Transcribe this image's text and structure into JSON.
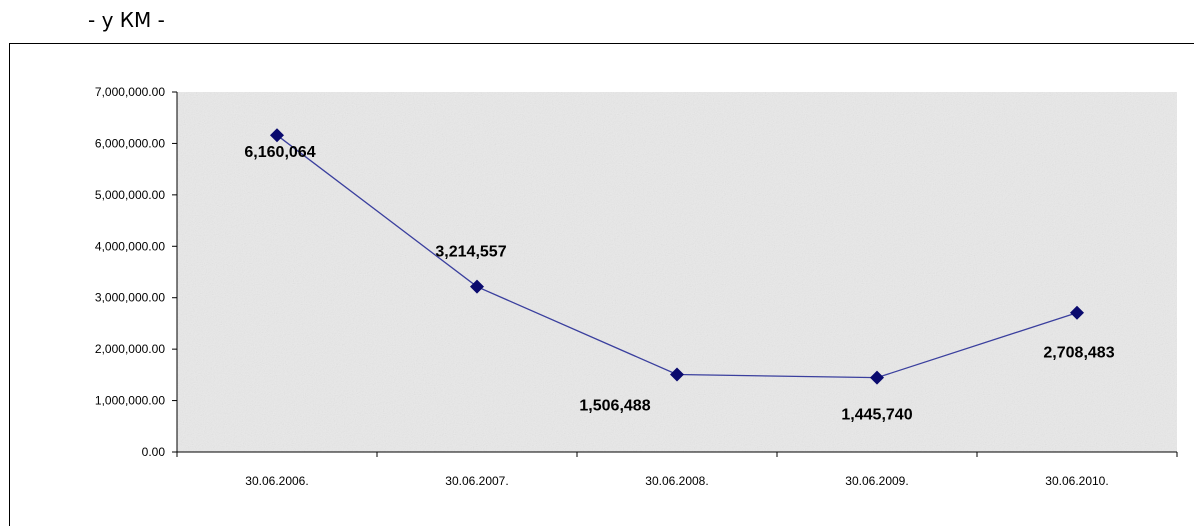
{
  "title": "- у КМ -",
  "colors": {
    "line": "#3a3f9e",
    "marker": "#0a0a6e",
    "plot_bg": "#e9e9e9"
  },
  "chart_data": {
    "type": "line",
    "x": [
      "30.06.2006.",
      "30.06.2007.",
      "30.06.2008.",
      "30.06.2009.",
      "30.06.2010."
    ],
    "series": [
      {
        "values": [
          6160064,
          3214557,
          1506488,
          1445740,
          2708483
        ]
      }
    ],
    "data_labels": [
      "6,160,064",
      "3,214,557",
      "1,506,488",
      "1,445,740",
      "2,708,483"
    ],
    "y_ticks": [
      "0.00",
      "1,000,000.00",
      "2,000,000.00",
      "3,000,000.00",
      "4,000,000.00",
      "5,000,000.00",
      "6,000,000.00",
      "7,000,000.00"
    ],
    "ylim": [
      0,
      7000000
    ],
    "grid": false,
    "legend": "none"
  }
}
